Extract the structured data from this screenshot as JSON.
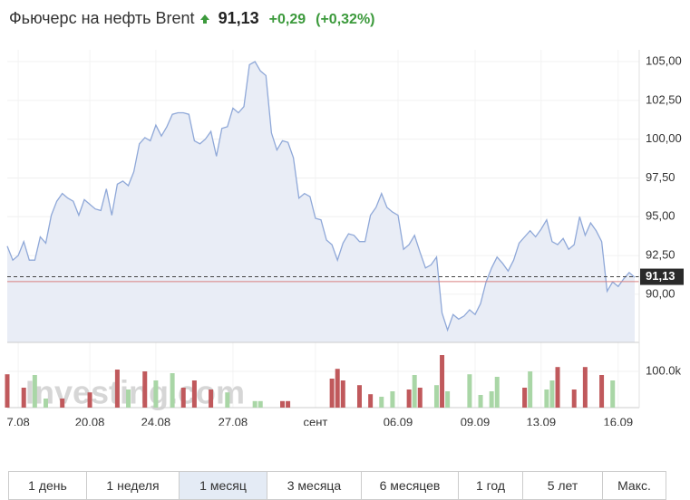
{
  "header": {
    "title": "Фьючерс на нефть Brent",
    "change": "+0,29",
    "change_pct": "(+0,32%)"
  },
  "chart_data": {
    "type": "area",
    "series": [
      {
        "name": "Brent",
        "color": "#8fa8d8",
        "values": [
          93.1,
          92.2,
          92.5,
          93.4,
          92.2,
          92.2,
          93.7,
          93.3,
          95.1,
          96.0,
          96.5,
          96.2,
          96.0,
          95.1,
          96.1,
          95.8,
          95.5,
          95.4,
          96.8,
          95.1,
          97.1,
          97.3,
          97.0,
          97.9,
          99.7,
          100.1,
          99.9,
          100.9,
          100.2,
          100.8,
          101.6,
          101.7,
          101.7,
          101.6,
          99.9,
          99.7,
          100.0,
          100.5,
          98.9,
          100.7,
          100.8,
          102.0,
          101.7,
          102.1,
          104.8,
          105.0,
          104.4,
          104.1,
          100.4,
          99.3,
          99.9,
          99.8,
          98.8,
          96.2,
          96.5,
          96.3,
          94.9,
          94.8,
          93.5,
          93.2,
          92.2,
          93.3,
          93.9,
          93.8,
          93.4,
          93.4,
          95.1,
          95.6,
          96.5,
          95.6,
          95.3,
          95.1,
          92.9,
          93.2,
          93.8,
          92.7,
          91.7,
          91.9,
          92.4,
          88.8,
          87.7,
          88.7,
          88.4,
          88.6,
          89.0,
          88.7,
          89.4,
          90.8,
          91.7,
          92.4,
          92.0,
          91.5,
          92.2,
          93.3,
          93.7,
          94.1,
          93.7,
          94.2,
          94.8,
          93.4,
          93.2,
          93.6,
          92.9,
          93.2,
          95.0,
          93.8,
          94.6,
          94.1,
          93.4,
          90.2,
          90.8,
          90.5,
          91.0,
          91.4,
          91.1
        ]
      }
    ],
    "categories": [
      null,
      null,
      "7.08",
      null,
      null,
      null,
      null,
      null,
      null,
      null,
      null,
      null,
      null,
      null,
      null,
      "20.08",
      null,
      null,
      null,
      null,
      null,
      null,
      null,
      null,
      null,
      null,
      null,
      "24.08",
      null,
      null,
      null,
      null,
      null,
      null,
      null,
      null,
      null,
      null,
      null,
      null,
      null,
      "27.08",
      null,
      null,
      null,
      null,
      null,
      null,
      null,
      null,
      null,
      null,
      null,
      null,
      null,
      null,
      "сент",
      null,
      null,
      null,
      null,
      null,
      null,
      null,
      null,
      null,
      null,
      null,
      null,
      null,
      null,
      "06.09",
      null,
      null,
      null,
      null,
      null,
      null,
      null,
      null,
      null,
      null,
      null,
      null,
      null,
      "09.09",
      null,
      null,
      null,
      null,
      null,
      null,
      null,
      null,
      null,
      null,
      null,
      "13.09",
      null,
      null,
      null,
      null,
      null,
      null,
      null,
      null,
      null,
      null,
      null,
      null,
      null,
      "16.09",
      null,
      null,
      null
    ],
    "ylim": [
      86.9,
      105.76
    ],
    "yticks": [
      {
        "value": 90,
        "label": "90,00"
      },
      {
        "value": 92.5,
        "label": "92,50"
      },
      {
        "value": 95,
        "label": "95,00"
      },
      {
        "value": 97.5,
        "label": "97,50"
      },
      {
        "value": 100,
        "label": "100,00"
      },
      {
        "value": 102.5,
        "label": "102,50"
      },
      {
        "value": 105,
        "label": "105,00"
      }
    ],
    "last": {
      "value": 91.13,
      "label": "91,13"
    },
    "reference_line": 90.82,
    "watermark": "Investing.com",
    "volume": {
      "x": [
        0,
        3,
        5,
        7,
        10,
        15,
        20,
        22,
        25,
        27,
        30,
        32,
        34,
        37,
        40,
        45,
        46,
        50,
        51,
        59,
        60,
        61,
        64,
        66,
        68,
        70,
        73,
        74,
        75,
        78,
        79,
        80,
        84,
        86,
        88,
        89,
        94,
        95,
        98,
        99,
        100,
        103,
        105,
        108,
        110
      ],
      "values": [
        92000,
        55000,
        90000,
        25000,
        25000,
        42000,
        105000,
        50000,
        100000,
        75000,
        95000,
        55000,
        75000,
        50000,
        42000,
        18000,
        18000,
        18000,
        18000,
        80000,
        107000,
        75000,
        62000,
        37000,
        30000,
        45000,
        50000,
        90000,
        55000,
        62000,
        145000,
        45000,
        92000,
        35000,
        45000,
        85000,
        55000,
        100000,
        50000,
        75000,
        112000,
        50000,
        112000,
        90000,
        75000
      ],
      "colors": [
        "#c0595c",
        "#c0595c",
        "#a9d6a6",
        "#a9d6a6",
        "#c0595c",
        "#c0595c",
        "#c0595c",
        "#a9d6a6",
        "#c0595c",
        "#a9d6a6",
        "#a9d6a6",
        "#c0595c",
        "#c0595c",
        "#c0595c",
        "#a9d6a6",
        "#a9d6a6",
        "#a9d6a6",
        "#c0595c",
        "#c0595c",
        "#c0595c",
        "#c0595c",
        "#c0595c",
        "#c0595c",
        "#c0595c",
        "#a9d6a6",
        "#a9d6a6",
        "#c0595c",
        "#a9d6a6",
        "#c0595c",
        "#a9d6a6",
        "#c0595c",
        "#a9d6a6",
        "#a9d6a6",
        "#a9d6a6",
        "#a9d6a6",
        "#a9d6a6",
        "#c0595c",
        "#a9d6a6",
        "#a9d6a6",
        "#a9d6a6",
        "#c0595c",
        "#c0595c",
        "#c0595c",
        "#c0595c",
        "#a9d6a6"
      ],
      "ylim": [
        0,
        175000
      ],
      "yticks": [
        {
          "value": 100000,
          "label": "100.0k"
        }
      ]
    }
  },
  "buttons": {
    "labels": [
      "1 день",
      "1 неделя",
      "1 месяц",
      "3 месяца",
      "6 месяцев",
      "1 год",
      "5 лет",
      "Макс."
    ],
    "active": 2
  }
}
